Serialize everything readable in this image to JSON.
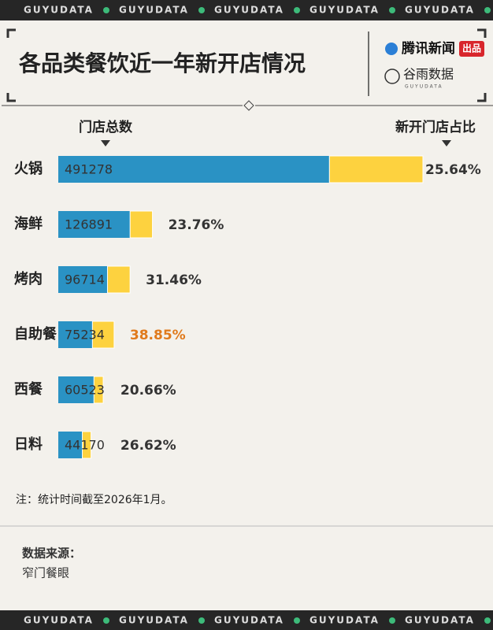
{
  "banner": "GUYUDATA",
  "header": {
    "title": "各品类餐饮近一年新开店情况",
    "logo1": "腾讯新闻",
    "logo1_tag": "出品",
    "logo2": "谷雨数据",
    "logo2_sub": "GUYUDATA"
  },
  "chart_data": {
    "type": "bar",
    "orientation": "horizontal",
    "categories": [
      "火锅",
      "海鲜",
      "烤肉",
      "自助餐",
      "西餐",
      "日料"
    ],
    "series": [
      {
        "name": "门店总数",
        "color": "#2a92c4",
        "values": [
          491278,
          126891,
          96714,
          75234,
          60523,
          44170
        ]
      },
      {
        "name": "新开门店占比",
        "color": "#fdd23f",
        "values": [
          25.64,
          23.76,
          31.46,
          38.85,
          20.66,
          26.62
        ],
        "value_labels": [
          "25.64%",
          "23.76%",
          "31.46%",
          "38.85%",
          "20.66%",
          "26.62%"
        ]
      }
    ],
    "highlight_color": "#e07a1c"
  },
  "footnote": "注：统计时间截至2026年1月。",
  "source": {
    "label": "数据来源：",
    "text": "窄门餐眼"
  }
}
